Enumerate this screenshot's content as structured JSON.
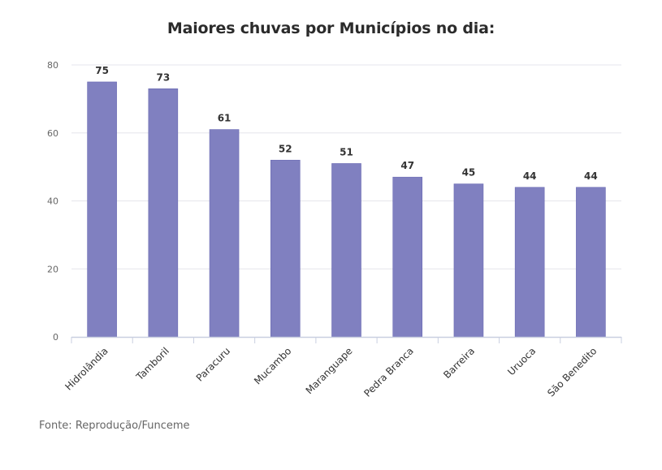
{
  "chart_data": {
    "type": "bar",
    "title": "Maiores chuvas por Municípios no dia:",
    "xlabel": "",
    "ylabel": "",
    "categories": [
      "Hidrolândia",
      "Tamboril",
      "Paracuru",
      "Mucambo",
      "Maranguape",
      "Pedra Branca",
      "Barreira",
      "Uruoca",
      "São Benedito"
    ],
    "values": [
      75,
      73,
      61,
      52,
      51,
      47,
      45,
      44,
      44
    ],
    "ylim": [
      0,
      80
    ],
    "yticks": [
      "0",
      "20",
      "40",
      "60",
      "80"
    ],
    "grid": true,
    "legend": "none",
    "data_labels": true
  },
  "footer": {
    "source": "Fonte: Reprodução/Funceme"
  },
  "colors": {
    "bar": "#8080c0",
    "bar_border": "#6a6ab3",
    "grid": "#e6e6ec",
    "axis": "#c9cfe0",
    "tick_text": "#666666",
    "data_label": "#333333"
  }
}
